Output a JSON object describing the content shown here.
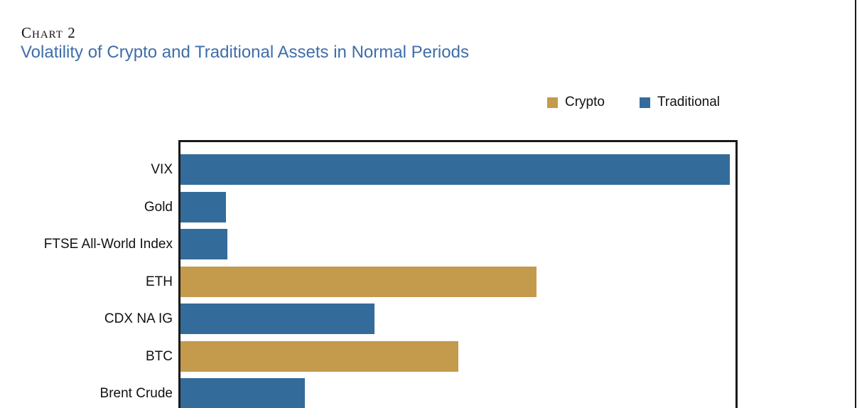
{
  "header": {
    "kicker": "Chart 2",
    "title": "Volatility of Crypto and Traditional Assets in Normal Periods",
    "title_color": "#3e6eaa"
  },
  "legend": [
    {
      "label": "Crypto",
      "color": "#c49a4d"
    },
    {
      "label": "Traditional",
      "color": "#336c9b"
    }
  ],
  "colors": {
    "crypto": "#c49a4d",
    "traditional": "#336c9b",
    "border": "#1a1a1a"
  },
  "chart_data": {
    "type": "bar",
    "orientation": "horizontal",
    "title": "Volatility of Crypto and Traditional Assets in Normal Periods",
    "xlabel": "",
    "ylabel": "",
    "xlim": [
      0,
      100
    ],
    "grid": false,
    "legend_position": "top-right",
    "legend_entries": [
      "Crypto",
      "Traditional"
    ],
    "categories": [
      "VIX",
      "Gold",
      "FTSE All-World Index",
      "ETH",
      "CDX NA IG",
      "BTC",
      "Brent Crude"
    ],
    "series": [
      {
        "name": "Crypto",
        "values": [
          null,
          null,
          null,
          64.2,
          null,
          50.0,
          null
        ]
      },
      {
        "name": "Traditional",
        "values": [
          99.0,
          8.2,
          8.4,
          null,
          34.9,
          null,
          22.4
        ]
      }
    ],
    "values": [
      99.0,
      8.2,
      8.4,
      64.2,
      34.9,
      50.0,
      22.4
    ],
    "groups": [
      "traditional",
      "traditional",
      "traditional",
      "crypto",
      "traditional",
      "crypto",
      "traditional"
    ]
  }
}
